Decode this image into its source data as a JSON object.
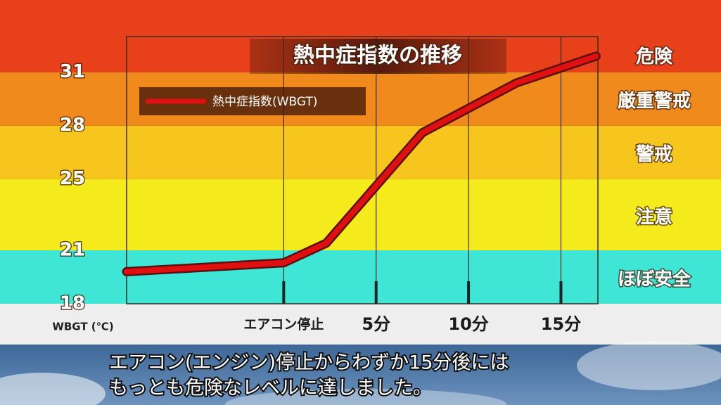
{
  "chart_data": {
    "type": "line",
    "title": "熱中症指数の推移",
    "y_label": "WBGT (℃)",
    "xlim": [
      -8.5,
      17
    ],
    "xticks": [
      {
        "value": 0,
        "label": "エアコン停止"
      },
      {
        "value": 5,
        "label": "5分"
      },
      {
        "value": 10,
        "label": "10分"
      },
      {
        "value": 15,
        "label": "15分"
      }
    ],
    "ylim": [
      18,
      33
    ],
    "yticks": [
      18,
      21,
      25,
      28,
      31
    ],
    "bands": [
      {
        "label": "ほぼ安全",
        "from": 18,
        "color": "#3fe6d6"
      },
      {
        "label": "注意",
        "from": 21,
        "color": "#f4ea1c"
      },
      {
        "label": "警戒",
        "from": 25,
        "color": "#f6c61e"
      },
      {
        "label": "厳重警戒",
        "from": 28,
        "color": "#f08a1c"
      },
      {
        "label": "危険",
        "from": 31,
        "color": "#e8401a"
      }
    ],
    "legend": "upper left",
    "series": [
      {
        "name": "熱中症指数(WBGT)",
        "color": "#e01010",
        "x": [
          -8.5,
          0,
          2.3,
          7.5,
          12.6,
          16.9
        ],
        "values": [
          19.8,
          20.3,
          21.4,
          27.6,
          30.4,
          31.9
        ]
      }
    ],
    "caption": [
      "エアコン(エンジン)停止からわずか15分後には",
      "もっとも危険なレベルに達しました。"
    ]
  }
}
